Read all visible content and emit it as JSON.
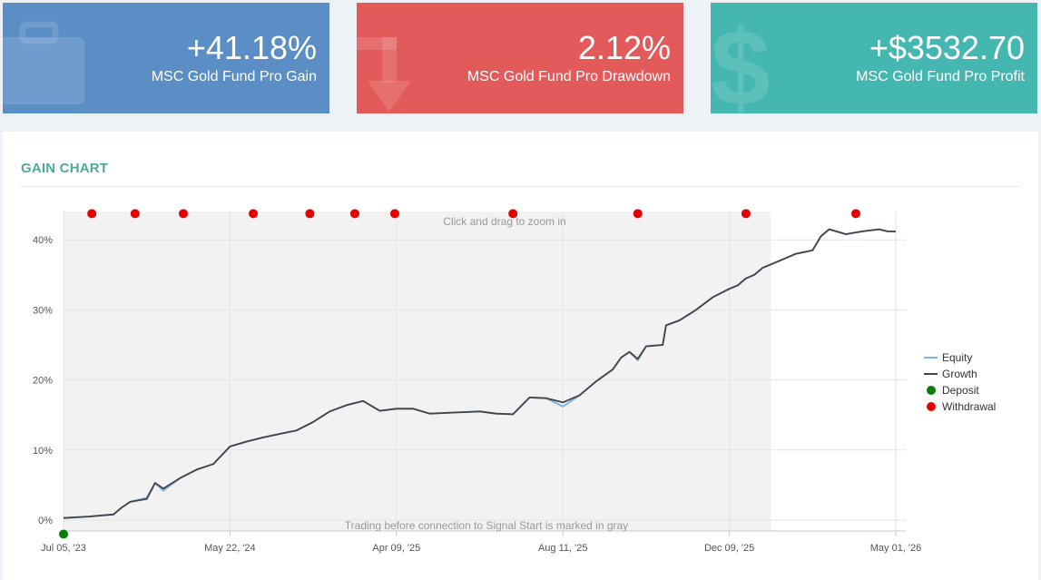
{
  "cards": {
    "gain": {
      "value": "+41.18%",
      "label": "MSC Gold Fund Pro Gain",
      "icon": "briefcase-icon",
      "color": "#5a8ec5"
    },
    "drawdown": {
      "value": "2.12%",
      "label": "MSC Gold Fund Pro Drawdown",
      "icon": "arrow-down-icon",
      "color": "#e35a5a"
    },
    "profit": {
      "value": "+$3532.70",
      "label": "MSC Gold Fund Pro Profit",
      "icon": "dollar-icon",
      "color": "#45b7b1"
    }
  },
  "panel": {
    "title": "GAIN CHART"
  },
  "chart_data": {
    "type": "line",
    "x_ticks": [
      "Jul 05, '23",
      "May 22, '24",
      "Apr 09, '25",
      "Aug 11, '25",
      "Dec 09, '25",
      "May 01, '26"
    ],
    "y_ticks": [
      "0%",
      "10%",
      "20%",
      "30%",
      "40%"
    ],
    "ylim": [
      0,
      44
    ],
    "grid": true,
    "legend_position": "right",
    "zoom_hint": "Click and drag to zoom in",
    "gray_note": "Trading before connection to Signal Start is marked in gray",
    "gray_region_until": "Dec 09, '25 + ~1/6 interval",
    "series": [
      {
        "name": "Equity",
        "color": "#7cb5ec",
        "x": [
          0,
          0.15,
          0.3,
          0.35,
          0.4,
          0.5,
          0.55,
          0.6,
          0.7,
          0.8,
          0.9,
          1.0,
          1.1,
          1.2,
          1.3,
          1.4,
          1.5,
          1.6,
          1.7,
          1.8,
          1.9,
          2.0,
          2.1,
          2.2,
          2.3,
          2.4,
          2.5,
          2.6,
          2.7,
          2.8,
          2.9,
          3.0,
          3.1,
          3.2,
          3.3,
          3.35,
          3.4,
          3.45,
          3.5,
          3.6,
          3.62,
          3.7,
          3.8,
          3.9,
          4.0,
          4.05,
          4.1,
          4.15,
          4.2,
          4.3,
          4.35,
          4.4,
          4.5,
          4.55,
          4.6,
          4.7,
          4.8,
          4.9,
          4.95,
          5.0
        ],
        "y": [
          0.3,
          0.5,
          0.8,
          1.8,
          2.6,
          3.2,
          5.3,
          4.2,
          6.0,
          7.2,
          8.0,
          10.5,
          11.2,
          11.8,
          12.3,
          12.8,
          14.0,
          15.5,
          16.4,
          17.0,
          15.6,
          15.9,
          15.9,
          15.2,
          15.3,
          15.4,
          15.5,
          15.2,
          15.1,
          17.5,
          17.4,
          16.2,
          17.8,
          19.8,
          21.5,
          23.2,
          24.0,
          22.8,
          24.8,
          25.0,
          27.8,
          28.5,
          30.0,
          31.8,
          33.0,
          33.5,
          34.5,
          35.0,
          36.0,
          37.0,
          37.5,
          38.0,
          38.5,
          40.5,
          41.5,
          40.8,
          41.2,
          41.5,
          41.2,
          41.18
        ]
      },
      {
        "name": "Growth",
        "color": "#434348",
        "x": [
          0,
          0.15,
          0.3,
          0.35,
          0.4,
          0.5,
          0.55,
          0.6,
          0.7,
          0.8,
          0.9,
          1.0,
          1.1,
          1.2,
          1.3,
          1.4,
          1.5,
          1.6,
          1.7,
          1.8,
          1.9,
          2.0,
          2.1,
          2.2,
          2.3,
          2.4,
          2.5,
          2.6,
          2.7,
          2.8,
          2.9,
          3.0,
          3.1,
          3.2,
          3.3,
          3.35,
          3.4,
          3.45,
          3.5,
          3.6,
          3.62,
          3.7,
          3.8,
          3.9,
          4.0,
          4.05,
          4.1,
          4.15,
          4.2,
          4.3,
          4.35,
          4.4,
          4.5,
          4.55,
          4.6,
          4.7,
          4.8,
          4.9,
          4.95,
          5.0
        ],
        "y": [
          0.3,
          0.5,
          0.8,
          1.8,
          2.6,
          3.0,
          5.3,
          4.5,
          6.0,
          7.2,
          8.0,
          10.5,
          11.2,
          11.8,
          12.3,
          12.8,
          14.0,
          15.5,
          16.4,
          17.0,
          15.6,
          15.9,
          15.9,
          15.2,
          15.3,
          15.4,
          15.5,
          15.2,
          15.1,
          17.5,
          17.4,
          16.8,
          17.8,
          19.8,
          21.5,
          23.2,
          24.0,
          23.0,
          24.8,
          25.0,
          27.8,
          28.5,
          30.0,
          31.8,
          33.0,
          33.5,
          34.5,
          35.0,
          36.0,
          37.0,
          37.5,
          38.0,
          38.5,
          40.5,
          41.5,
          40.8,
          41.2,
          41.5,
          41.2,
          41.18
        ]
      }
    ],
    "markers": {
      "deposit": {
        "name": "Deposit",
        "color": "#0a7d0a",
        "x": [
          0
        ],
        "y": [
          -2
        ]
      },
      "withdrawal": {
        "name": "Withdrawal",
        "color": "#e60000",
        "x": [
          0.17,
          0.43,
          0.72,
          1.14,
          1.48,
          1.75,
          1.99,
          2.7,
          3.45,
          4.1,
          4.76
        ],
        "y": [
          44,
          44,
          44,
          44,
          44,
          44,
          44,
          44,
          44,
          44,
          44
        ]
      }
    }
  }
}
